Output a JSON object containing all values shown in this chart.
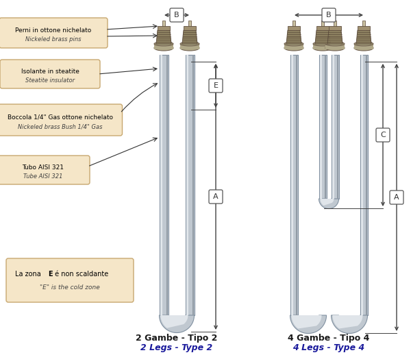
{
  "bg_color": "#ffffff",
  "label_box_color": "#f5e6c8",
  "label_box_edge": "#c8a870",
  "tube_color": "#c0c8d0",
  "tube_edge_color": "#8090a0",
  "tube_highlight": "#e0e5ea",
  "tube_shadow": "#909aa4",
  "connector_thread": "#8c8060",
  "connector_flange": "#b0a888",
  "connector_pin": "#c8c0a0",
  "dim_line_color": "#404040",
  "label_it_color": "#000000",
  "label_en_color": "#404040",
  "bottom_it_color": "#1a1a1a",
  "bottom_en_color": "#1a1a9c",
  "type2_label_it": "2 Gambe - Tipo 2",
  "type2_label_en": "2 Legs - Type 2",
  "type4_label_it": "4 Gambe - Tipo 4",
  "type4_label_en": "4 Legs - Type 4"
}
